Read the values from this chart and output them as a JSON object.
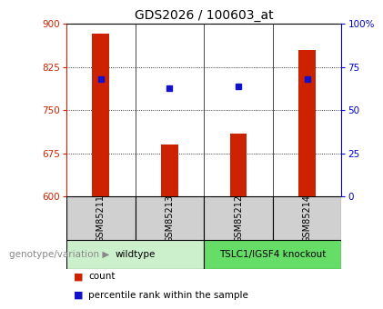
{
  "title": "GDS2026 / 100603_at",
  "samples": [
    "GSM85211",
    "GSM85213",
    "GSM85212",
    "GSM85214"
  ],
  "counts": [
    883,
    690,
    710,
    855
  ],
  "percentile_ranks": [
    68,
    63,
    64,
    68
  ],
  "ylim_left": [
    600,
    900
  ],
  "ylim_right": [
    0,
    100
  ],
  "yticks_left": [
    600,
    675,
    750,
    825,
    900
  ],
  "yticks_right": [
    0,
    25,
    50,
    75,
    100
  ],
  "yticklabels_right": [
    "0",
    "25",
    "50",
    "75",
    "100%"
  ],
  "bar_color": "#cc2200",
  "square_color": "#1111cc",
  "bar_width": 0.25,
  "left_tick_color": "#cc2200",
  "right_tick_color": "#0000cc",
  "title_fontsize": 10,
  "legend_fontsize": 7.5,
  "tick_fontsize": 7.5,
  "sample_label_fontsize": 7,
  "group_label_fontsize": 7.5,
  "group_box_color_wildtype": "#ccf0cc",
  "group_box_color_knockout": "#66dd66",
  "annotation_text": "genotype/variation",
  "annotation_fontsize": 7.5
}
